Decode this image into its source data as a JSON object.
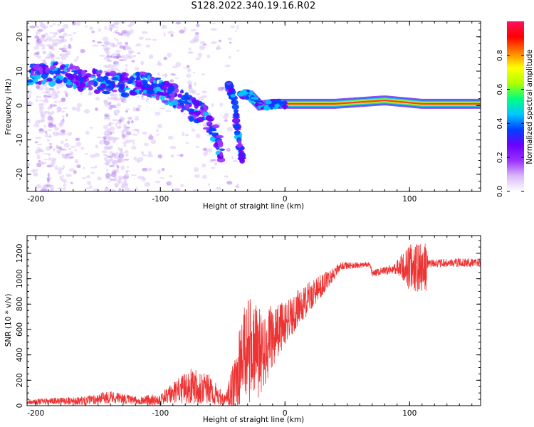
{
  "title": "S128.2022.340.19.16.R02",
  "chart_data": [
    {
      "type": "heatmap",
      "xlabel": "Height of straight line (km)",
      "ylabel": "Frequency (Hz)",
      "xlim": [
        -207,
        157
      ],
      "ylim": [
        -25,
        24.5
      ],
      "xticks": [
        -200,
        -100,
        0,
        100
      ],
      "yticks": [
        -20,
        -10,
        0,
        10,
        20
      ],
      "colorbar": {
        "label": "Normalized spectral amplitude",
        "range": [
          0,
          1
        ],
        "ticks": [
          "0.0",
          "0.2",
          "0.4",
          "0.6",
          "0.8"
        ],
        "colormap": [
          "#ffffff",
          "#d9b8f7",
          "#9b30ff",
          "#6a00ff",
          "#0040ff",
          "#00c8ff",
          "#00ff80",
          "#b0ff00",
          "#ffff00",
          "#ff8000",
          "#ff0000",
          "#ff1060"
        ]
      },
      "ridge": [
        {
          "x": -195,
          "y": 9
        },
        {
          "x": -180,
          "y": 9.5
        },
        {
          "x": -170,
          "y": 8.5
        },
        {
          "x": -160,
          "y": 7
        },
        {
          "x": -150,
          "y": 7
        },
        {
          "x": -140,
          "y": 6.5
        },
        {
          "x": -125,
          "y": 6
        },
        {
          "x": -115,
          "y": 6.5
        },
        {
          "x": -105,
          "y": 5.5
        },
        {
          "x": -95,
          "y": 3.5
        },
        {
          "x": -85,
          "y": 2
        },
        {
          "x": -75,
          "y": -1
        },
        {
          "x": -65,
          "y": -2.5
        },
        {
          "x": -58,
          "y": -7
        },
        {
          "x": -50,
          "y": -14
        }
      ],
      "ridge2": [
        {
          "x": -45,
          "y": 6
        },
        {
          "x": -40,
          "y": 0
        },
        {
          "x": -38,
          "y": -8
        },
        {
          "x": -35,
          "y": -15
        }
      ],
      "ridge3": [
        {
          "x": -35,
          "y": 3.5
        },
        {
          "x": -28,
          "y": 3
        },
        {
          "x": -20,
          "y": 0
        },
        {
          "x": -10,
          "y": 0.5
        },
        {
          "x": 10,
          "y": 0.5
        },
        {
          "x": 40,
          "y": 0.5
        },
        {
          "x": 80,
          "y": 1.5
        },
        {
          "x": 110,
          "y": 0.5
        },
        {
          "x": 157,
          "y": 0.5
        }
      ]
    },
    {
      "type": "line",
      "xlabel": "Height of straight line (km)",
      "ylabel": "SNR (10 * v/v)",
      "xlim": [
        -207,
        157
      ],
      "ylim": [
        0,
        1340
      ],
      "xticks": [
        -200,
        -100,
        0,
        100
      ],
      "yticks": [
        0,
        200,
        400,
        600,
        800,
        1000,
        1200
      ],
      "series_color": "#ee3333",
      "envelope": [
        {
          "x": -207,
          "y": 30,
          "noise": 20
        },
        {
          "x": -160,
          "y": 40,
          "noise": 35
        },
        {
          "x": -140,
          "y": 70,
          "noise": 50
        },
        {
          "x": -120,
          "y": 40,
          "noise": 30
        },
        {
          "x": -100,
          "y": 50,
          "noise": 50
        },
        {
          "x": -85,
          "y": 120,
          "noise": 100
        },
        {
          "x": -72,
          "y": 170,
          "noise": 160
        },
        {
          "x": -60,
          "y": 120,
          "noise": 120
        },
        {
          "x": -48,
          "y": 40,
          "noise": 40
        },
        {
          "x": -40,
          "y": 150,
          "noise": 250
        },
        {
          "x": -33,
          "y": 450,
          "noise": 450
        },
        {
          "x": -20,
          "y": 420,
          "noise": 350
        },
        {
          "x": -5,
          "y": 600,
          "noise": 200
        },
        {
          "x": 20,
          "y": 860,
          "noise": 120
        },
        {
          "x": 35,
          "y": 1000,
          "noise": 70
        },
        {
          "x": 45,
          "y": 1100,
          "noise": 30
        },
        {
          "x": 68,
          "y": 1110,
          "noise": 20
        },
        {
          "x": 70,
          "y": 1040,
          "noise": 25
        },
        {
          "x": 88,
          "y": 1080,
          "noise": 40
        },
        {
          "x": 100,
          "y": 1090,
          "noise": 190
        },
        {
          "x": 113,
          "y": 1080,
          "noise": 200
        },
        {
          "x": 115,
          "y": 1120,
          "noise": 30
        },
        {
          "x": 157,
          "y": 1130,
          "noise": 35
        }
      ]
    }
  ]
}
